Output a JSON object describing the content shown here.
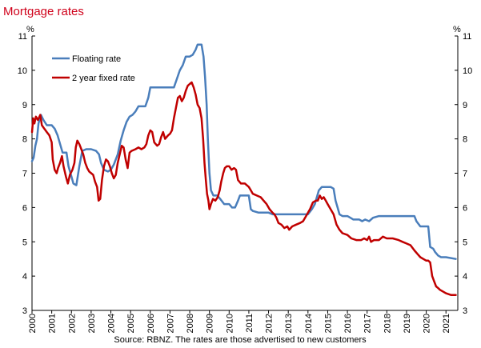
{
  "chart_data": {
    "type": "line",
    "title": "Mortgage rates",
    "source": "Source: RBNZ. The rates are those advertised to new customers",
    "ylabel_left": "%",
    "ylabel_right": "%",
    "ylim": [
      3,
      11
    ],
    "yticks": [
      "3",
      "4",
      "5",
      "6",
      "7",
      "8",
      "9",
      "10",
      "11"
    ],
    "xlim": [
      2000,
      2021.6
    ],
    "xticks": [
      "2000",
      "2001",
      "2002",
      "2003",
      "2004",
      "2005",
      "2006",
      "2007",
      "2008",
      "2009",
      "2010",
      "2011",
      "2012",
      "2013",
      "2014",
      "2015",
      "2016",
      "2017",
      "2018",
      "2019",
      "2020",
      "2021"
    ],
    "grid": false,
    "legend_position": "top-left",
    "colors": {
      "floating": "#4a7ebb",
      "fixed": "#c00000",
      "title": "#d0021b"
    },
    "series": [
      {
        "name": "Floating rate",
        "key": "floating",
        "points": [
          [
            2000.0,
            7.35
          ],
          [
            2000.08,
            7.45
          ],
          [
            2000.17,
            7.8
          ],
          [
            2000.25,
            8.0
          ],
          [
            2000.33,
            8.45
          ],
          [
            2000.45,
            8.7
          ],
          [
            2000.58,
            8.55
          ],
          [
            2000.75,
            8.4
          ],
          [
            2001.0,
            8.4
          ],
          [
            2001.15,
            8.3
          ],
          [
            2001.3,
            8.1
          ],
          [
            2001.45,
            7.8
          ],
          [
            2001.55,
            7.6
          ],
          [
            2001.75,
            7.6
          ],
          [
            2001.85,
            7.2
          ],
          [
            2002.0,
            6.9
          ],
          [
            2002.1,
            6.7
          ],
          [
            2002.25,
            6.65
          ],
          [
            2002.4,
            7.2
          ],
          [
            2002.55,
            7.65
          ],
          [
            2002.75,
            7.7
          ],
          [
            2003.0,
            7.7
          ],
          [
            2003.25,
            7.65
          ],
          [
            2003.4,
            7.55
          ],
          [
            2003.5,
            7.3
          ],
          [
            2003.65,
            7.1
          ],
          [
            2003.85,
            7.05
          ],
          [
            2004.0,
            7.1
          ],
          [
            2004.15,
            7.25
          ],
          [
            2004.35,
            7.55
          ],
          [
            2004.5,
            7.95
          ],
          [
            2004.65,
            8.25
          ],
          [
            2004.8,
            8.5
          ],
          [
            2004.95,
            8.65
          ],
          [
            2005.1,
            8.7
          ],
          [
            2005.25,
            8.8
          ],
          [
            2005.4,
            8.95
          ],
          [
            2005.75,
            8.95
          ],
          [
            2005.9,
            9.2
          ],
          [
            2006.0,
            9.5
          ],
          [
            2006.5,
            9.5
          ],
          [
            2007.0,
            9.5
          ],
          [
            2007.2,
            9.5
          ],
          [
            2007.35,
            9.75
          ],
          [
            2007.5,
            10.0
          ],
          [
            2007.65,
            10.15
          ],
          [
            2007.8,
            10.4
          ],
          [
            2008.0,
            10.4
          ],
          [
            2008.15,
            10.45
          ],
          [
            2008.3,
            10.6
          ],
          [
            2008.4,
            10.75
          ],
          [
            2008.6,
            10.75
          ],
          [
            2008.7,
            10.4
          ],
          [
            2008.78,
            9.8
          ],
          [
            2008.86,
            9.0
          ],
          [
            2008.92,
            8.0
          ],
          [
            2009.0,
            7.0
          ],
          [
            2009.08,
            6.5
          ],
          [
            2009.2,
            6.35
          ],
          [
            2009.4,
            6.35
          ],
          [
            2009.55,
            6.25
          ],
          [
            2009.75,
            6.1
          ],
          [
            2010.0,
            6.1
          ],
          [
            2010.15,
            6.0
          ],
          [
            2010.3,
            6.0
          ],
          [
            2010.45,
            6.2
          ],
          [
            2010.55,
            6.35
          ],
          [
            2010.75,
            6.35
          ],
          [
            2011.0,
            6.35
          ],
          [
            2011.1,
            5.95
          ],
          [
            2011.2,
            5.9
          ],
          [
            2011.5,
            5.85
          ],
          [
            2012.0,
            5.85
          ],
          [
            2012.2,
            5.8
          ],
          [
            2012.5,
            5.8
          ],
          [
            2013.0,
            5.8
          ],
          [
            2013.5,
            5.8
          ],
          [
            2014.0,
            5.8
          ],
          [
            2014.2,
            5.95
          ],
          [
            2014.35,
            6.1
          ],
          [
            2014.45,
            6.3
          ],
          [
            2014.55,
            6.5
          ],
          [
            2014.7,
            6.6
          ],
          [
            2015.0,
            6.6
          ],
          [
            2015.15,
            6.6
          ],
          [
            2015.3,
            6.55
          ],
          [
            2015.4,
            6.2
          ],
          [
            2015.5,
            6.0
          ],
          [
            2015.6,
            5.8
          ],
          [
            2015.75,
            5.75
          ],
          [
            2016.0,
            5.75
          ],
          [
            2016.15,
            5.7
          ],
          [
            2016.3,
            5.65
          ],
          [
            2016.6,
            5.65
          ],
          [
            2016.75,
            5.6
          ],
          [
            2016.9,
            5.65
          ],
          [
            2017.1,
            5.6
          ],
          [
            2017.3,
            5.7
          ],
          [
            2017.6,
            5.75
          ],
          [
            2018.0,
            5.75
          ],
          [
            2018.5,
            5.75
          ],
          [
            2019.0,
            5.75
          ],
          [
            2019.25,
            5.75
          ],
          [
            2019.4,
            5.75
          ],
          [
            2019.5,
            5.6
          ],
          [
            2019.7,
            5.45
          ],
          [
            2020.1,
            5.45
          ],
          [
            2020.2,
            4.85
          ],
          [
            2020.35,
            4.8
          ],
          [
            2020.45,
            4.7
          ],
          [
            2020.6,
            4.6
          ],
          [
            2020.75,
            4.55
          ],
          [
            2021.0,
            4.55
          ],
          [
            2021.5,
            4.5
          ]
        ]
      },
      {
        "name": "2 year fixed rate",
        "key": "fixed",
        "points": [
          [
            2000.0,
            8.2
          ],
          [
            2000.06,
            8.6
          ],
          [
            2000.12,
            8.45
          ],
          [
            2000.2,
            8.65
          ],
          [
            2000.3,
            8.55
          ],
          [
            2000.42,
            8.7
          ],
          [
            2000.5,
            8.4
          ],
          [
            2000.62,
            8.3
          ],
          [
            2000.75,
            8.2
          ],
          [
            2000.88,
            8.1
          ],
          [
            2001.0,
            7.9
          ],
          [
            2001.05,
            7.4
          ],
          [
            2001.15,
            7.1
          ],
          [
            2001.25,
            7.0
          ],
          [
            2001.32,
            7.15
          ],
          [
            2001.42,
            7.3
          ],
          [
            2001.52,
            7.5
          ],
          [
            2001.6,
            7.2
          ],
          [
            2001.72,
            6.9
          ],
          [
            2001.82,
            6.7
          ],
          [
            2001.92,
            6.95
          ],
          [
            2002.05,
            7.1
          ],
          [
            2002.15,
            7.3
          ],
          [
            2002.22,
            7.75
          ],
          [
            2002.3,
            7.95
          ],
          [
            2002.4,
            7.85
          ],
          [
            2002.5,
            7.7
          ],
          [
            2002.6,
            7.55
          ],
          [
            2002.7,
            7.3
          ],
          [
            2002.8,
            7.15
          ],
          [
            2002.9,
            7.05
          ],
          [
            2003.0,
            7.0
          ],
          [
            2003.1,
            6.95
          ],
          [
            2003.2,
            6.75
          ],
          [
            2003.3,
            6.6
          ],
          [
            2003.38,
            6.2
          ],
          [
            2003.46,
            6.25
          ],
          [
            2003.55,
            6.8
          ],
          [
            2003.65,
            7.2
          ],
          [
            2003.75,
            7.4
          ],
          [
            2003.85,
            7.35
          ],
          [
            2003.95,
            7.2
          ],
          [
            2004.05,
            7.0
          ],
          [
            2004.15,
            6.85
          ],
          [
            2004.25,
            6.95
          ],
          [
            2004.35,
            7.3
          ],
          [
            2004.45,
            7.55
          ],
          [
            2004.55,
            7.8
          ],
          [
            2004.65,
            7.75
          ],
          [
            2004.75,
            7.4
          ],
          [
            2004.85,
            7.15
          ],
          [
            2004.95,
            7.6
          ],
          [
            2005.05,
            7.65
          ],
          [
            2005.25,
            7.7
          ],
          [
            2005.4,
            7.75
          ],
          [
            2005.55,
            7.7
          ],
          [
            2005.7,
            7.75
          ],
          [
            2005.8,
            7.85
          ],
          [
            2005.9,
            8.1
          ],
          [
            2006.0,
            8.25
          ],
          [
            2006.1,
            8.2
          ],
          [
            2006.2,
            7.9
          ],
          [
            2006.35,
            7.8
          ],
          [
            2006.45,
            7.85
          ],
          [
            2006.55,
            8.05
          ],
          [
            2006.65,
            8.2
          ],
          [
            2006.75,
            8.0
          ],
          [
            2006.9,
            8.1
          ],
          [
            2007.0,
            8.15
          ],
          [
            2007.1,
            8.25
          ],
          [
            2007.2,
            8.6
          ],
          [
            2007.3,
            8.9
          ],
          [
            2007.4,
            9.2
          ],
          [
            2007.5,
            9.25
          ],
          [
            2007.6,
            9.1
          ],
          [
            2007.7,
            9.2
          ],
          [
            2007.8,
            9.4
          ],
          [
            2007.9,
            9.55
          ],
          [
            2008.0,
            9.6
          ],
          [
            2008.1,
            9.65
          ],
          [
            2008.2,
            9.5
          ],
          [
            2008.3,
            9.3
          ],
          [
            2008.4,
            9.0
          ],
          [
            2008.5,
            8.9
          ],
          [
            2008.6,
            8.6
          ],
          [
            2008.68,
            8.0
          ],
          [
            2008.75,
            7.3
          ],
          [
            2008.82,
            6.8
          ],
          [
            2008.88,
            6.4
          ],
          [
            2008.95,
            6.2
          ],
          [
            2009.0,
            5.95
          ],
          [
            2009.08,
            6.1
          ],
          [
            2009.18,
            6.25
          ],
          [
            2009.3,
            6.2
          ],
          [
            2009.42,
            6.3
          ],
          [
            2009.52,
            6.5
          ],
          [
            2009.6,
            6.75
          ],
          [
            2009.7,
            7.0
          ],
          [
            2009.78,
            7.15
          ],
          [
            2009.88,
            7.2
          ],
          [
            2010.0,
            7.2
          ],
          [
            2010.12,
            7.1
          ],
          [
            2010.25,
            7.15
          ],
          [
            2010.35,
            7.1
          ],
          [
            2010.45,
            6.8
          ],
          [
            2010.6,
            6.7
          ],
          [
            2010.8,
            6.7
          ],
          [
            2011.0,
            6.6
          ],
          [
            2011.1,
            6.5
          ],
          [
            2011.2,
            6.4
          ],
          [
            2011.4,
            6.35
          ],
          [
            2011.6,
            6.3
          ],
          [
            2011.75,
            6.2
          ],
          [
            2011.9,
            6.1
          ],
          [
            2012.05,
            5.95
          ],
          [
            2012.2,
            5.85
          ],
          [
            2012.3,
            5.8
          ],
          [
            2012.4,
            5.7
          ],
          [
            2012.5,
            5.55
          ],
          [
            2012.65,
            5.5
          ],
          [
            2012.8,
            5.4
          ],
          [
            2012.95,
            5.45
          ],
          [
            2013.05,
            5.35
          ],
          [
            2013.2,
            5.45
          ],
          [
            2013.4,
            5.5
          ],
          [
            2013.6,
            5.55
          ],
          [
            2013.75,
            5.6
          ],
          [
            2013.9,
            5.75
          ],
          [
            2014.0,
            5.85
          ],
          [
            2014.1,
            5.95
          ],
          [
            2014.25,
            6.15
          ],
          [
            2014.4,
            6.2
          ],
          [
            2014.5,
            6.2
          ],
          [
            2014.6,
            6.35
          ],
          [
            2014.7,
            6.25
          ],
          [
            2014.8,
            6.3
          ],
          [
            2014.9,
            6.2
          ],
          [
            2015.0,
            6.1
          ],
          [
            2015.15,
            5.95
          ],
          [
            2015.3,
            5.8
          ],
          [
            2015.45,
            5.5
          ],
          [
            2015.6,
            5.35
          ],
          [
            2015.75,
            5.25
          ],
          [
            2016.0,
            5.2
          ],
          [
            2016.2,
            5.1
          ],
          [
            2016.45,
            5.05
          ],
          [
            2016.7,
            5.05
          ],
          [
            2016.85,
            5.1
          ],
          [
            2017.0,
            5.05
          ],
          [
            2017.1,
            5.15
          ],
          [
            2017.2,
            5.0
          ],
          [
            2017.35,
            5.05
          ],
          [
            2017.6,
            5.05
          ],
          [
            2017.8,
            5.15
          ],
          [
            2018.0,
            5.1
          ],
          [
            2018.3,
            5.1
          ],
          [
            2018.6,
            5.05
          ],
          [
            2018.8,
            5.0
          ],
          [
            2019.0,
            4.95
          ],
          [
            2019.2,
            4.9
          ],
          [
            2019.4,
            4.75
          ],
          [
            2019.55,
            4.65
          ],
          [
            2019.7,
            4.55
          ],
          [
            2019.85,
            4.5
          ],
          [
            2020.0,
            4.45
          ],
          [
            2020.1,
            4.45
          ],
          [
            2020.2,
            4.4
          ],
          [
            2020.3,
            4.0
          ],
          [
            2020.4,
            3.85
          ],
          [
            2020.5,
            3.7
          ],
          [
            2020.6,
            3.65
          ],
          [
            2020.7,
            3.6
          ],
          [
            2020.85,
            3.55
          ],
          [
            2021.0,
            3.5
          ],
          [
            2021.25,
            3.45
          ],
          [
            2021.5,
            3.45
          ]
        ]
      }
    ]
  }
}
